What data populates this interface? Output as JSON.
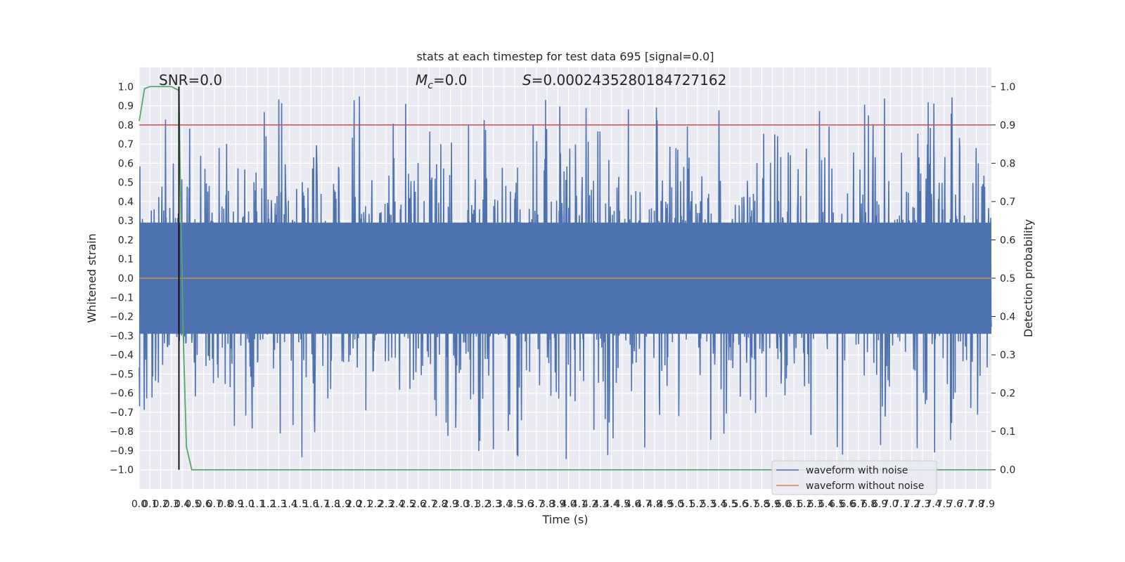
{
  "chart_data": {
    "type": "line",
    "title": "stats at each timestep for test data 695 [signal=0.0]",
    "xlabel": "Time (s)",
    "ylabel": "Whitened strain",
    "ylabel_right": "Detection probability",
    "xlim": [
      0.0,
      7.94
    ],
    "ylim": [
      -1.1,
      1.1
    ],
    "ylim_right": [
      -0.05,
      1.05
    ],
    "x_tick_step": 0.1,
    "x_tick_count": 80,
    "y_ticks": [
      1.0,
      0.9,
      0.8,
      0.7,
      0.6,
      0.5,
      0.4,
      0.3,
      0.2,
      0.1,
      0.0,
      -0.1,
      -0.2,
      -0.3,
      -0.4,
      -0.5,
      -0.6,
      -0.7,
      -0.8,
      -0.9,
      -1.0
    ],
    "y_ticks_right": [
      1.0,
      0.9,
      0.8,
      0.7,
      0.6,
      0.5,
      0.4,
      0.3,
      0.2,
      0.1,
      0.0
    ],
    "grid": true,
    "legend_position": "lower-right",
    "annotations": {
      "snr": "SNR=0.0",
      "mc_symbol": "M",
      "mc_subscript": "c",
      "mc_value": "=0.0",
      "s_symbol": "S",
      "s_value": "=0.0002435280184727162"
    },
    "threshold_line": {
      "value": 0.9,
      "axis": "right",
      "color": "#c44e52"
    },
    "vertical_marker": {
      "x": 0.37,
      "color": "#000000"
    },
    "series": [
      {
        "name": "waveform with noise",
        "color": "#4c72b0",
        "axis": "left",
        "kind": "noise",
        "envelope": [
          -1.0,
          0.99
        ],
        "typical_peak": [
          0.4,
          0.95
        ],
        "dense_band": [
          -0.4,
          0.4
        ]
      },
      {
        "name": "waveform without noise",
        "color": "#dd8452",
        "axis": "left",
        "x": [
          0.0,
          7.94
        ],
        "y": [
          0.0,
          0.0
        ]
      },
      {
        "name": "",
        "color": "#55a868",
        "axis": "right",
        "x": [
          0.0,
          0.05,
          0.1,
          0.2,
          0.3,
          0.37,
          0.38,
          0.41,
          0.44,
          0.49,
          0.7,
          1.0,
          2.0,
          3.0,
          4.0,
          5.0,
          6.0,
          7.0,
          7.94
        ],
        "y": [
          0.91,
          0.995,
          1.0,
          1.0,
          1.0,
          0.99,
          0.8,
          0.35,
          0.06,
          0.0,
          0.0,
          0.0,
          0.0,
          0.0,
          0.0,
          0.0,
          0.0,
          0.0,
          0.0
        ]
      }
    ]
  }
}
